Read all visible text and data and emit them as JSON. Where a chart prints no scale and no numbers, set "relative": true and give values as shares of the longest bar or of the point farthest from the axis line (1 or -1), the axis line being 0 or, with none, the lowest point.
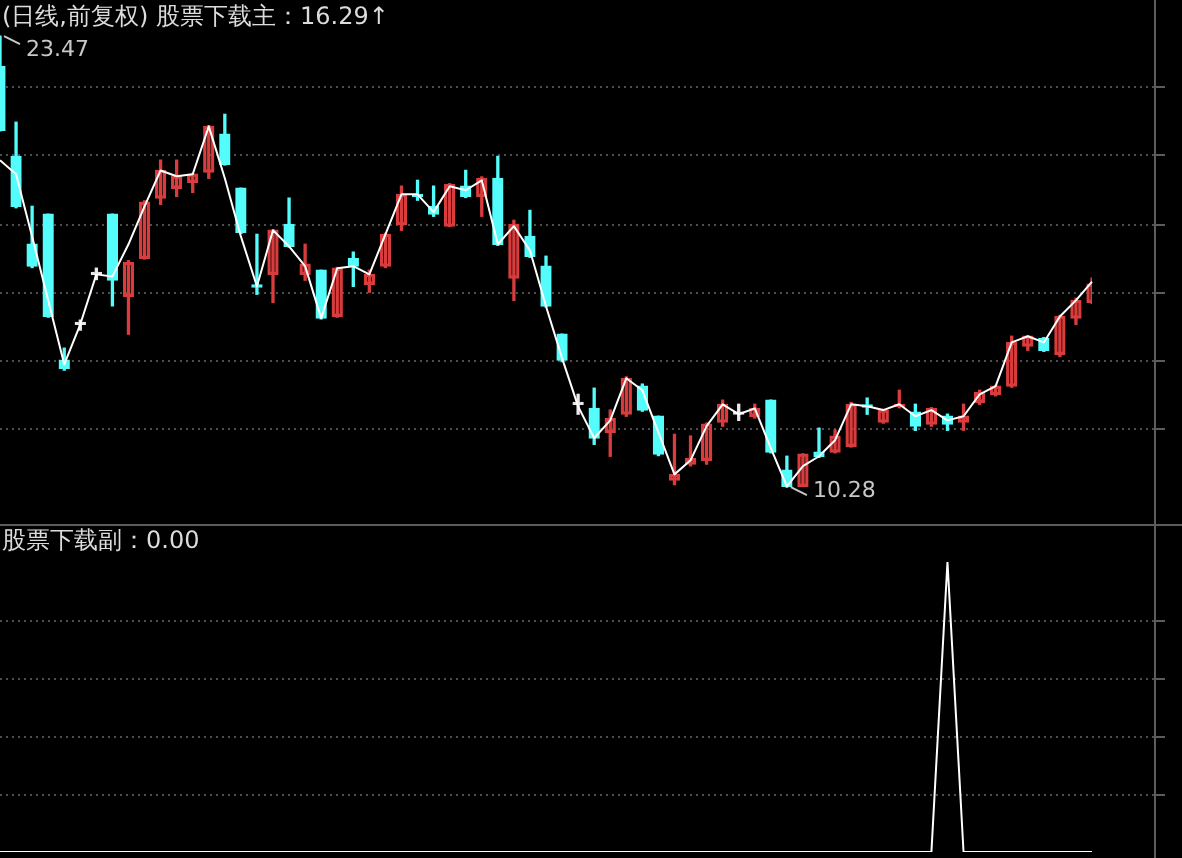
{
  "chart_data": [
    {
      "type": "candlestick",
      "title": "(日线,前复权) 股票下载主：16.29↑",
      "categories": [
        null,
        null,
        null,
        null,
        null,
        null,
        null,
        null,
        null,
        null,
        null,
        null,
        null,
        null,
        null,
        null,
        null,
        null,
        null,
        null,
        null,
        null,
        null,
        null,
        null,
        null,
        null,
        null,
        null,
        null,
        null,
        null,
        null,
        null,
        null,
        null,
        null,
        null,
        null,
        null,
        null,
        null,
        null,
        null,
        null,
        null,
        null,
        null,
        null,
        null,
        null,
        null,
        null,
        null,
        null,
        null,
        null,
        null,
        null,
        null,
        null,
        null,
        null,
        null,
        null,
        null,
        null,
        null,
        null
      ],
      "ohlc": [
        [
          22.58,
          23.47,
          20.7,
          20.71
        ],
        [
          19.95,
          20.95,
          18.45,
          18.49
        ],
        [
          17.38,
          18.49,
          16.7,
          16.74
        ],
        [
          18.26,
          18.26,
          15.25,
          15.27
        ],
        [
          13.99,
          14.34,
          13.7,
          13.75
        ],
        [
          15.04,
          15.16,
          14.87,
          15.04
        ],
        [
          16.5,
          16.68,
          16.35,
          16.5
        ],
        [
          18.26,
          18.26,
          15.58,
          16.33
        ],
        [
          15.86,
          16.9,
          14.75,
          16.85
        ],
        [
          16.97,
          18.65,
          16.95,
          18.61
        ],
        [
          18.73,
          19.84,
          18.55,
          19.54
        ],
        [
          19.02,
          19.84,
          18.78,
          19.37
        ],
        [
          19.19,
          19.45,
          18.9,
          19.43
        ],
        [
          19.49,
          20.85,
          19.31,
          20.83
        ],
        [
          20.6,
          21.18,
          19.7,
          19.72
        ],
        [
          19.02,
          19.02,
          17.7,
          17.73
        ],
        [
          16.17,
          17.67,
          15.92,
          16.13
        ],
        [
          16.5,
          17.8,
          15.68,
          17.79
        ],
        [
          17.96,
          18.73,
          17.3,
          17.32
        ],
        [
          16.5,
          17.38,
          16.33,
          16.8
        ],
        [
          16.62,
          16.62,
          15.2,
          15.22
        ],
        [
          15.27,
          16.7,
          15.25,
          16.68
        ],
        [
          16.97,
          17.15,
          16.15,
          16.74
        ],
        [
          16.21,
          16.62,
          15.98,
          16.5
        ],
        [
          16.74,
          17.7,
          16.7,
          17.67
        ],
        [
          17.96,
          19.08,
          17.79,
          18.84
        ],
        [
          18.84,
          19.25,
          18.67,
          18.78
        ],
        [
          18.49,
          19.08,
          18.2,
          18.26
        ],
        [
          17.91,
          19.15,
          17.9,
          19.13
        ],
        [
          19.08,
          19.54,
          18.75,
          18.78
        ],
        [
          18.78,
          19.35,
          18.2,
          19.31
        ],
        [
          19.31,
          19.95,
          17.35,
          17.38
        ],
        [
          16.39,
          18.08,
          15.74,
          17.96
        ],
        [
          17.61,
          18.37,
          17.0,
          17.03
        ],
        [
          16.74,
          17.03,
          15.55,
          15.57
        ],
        [
          14.75,
          14.75,
          13.95,
          13.99
        ],
        [
          12.7,
          12.99,
          12.41,
          12.7
        ],
        [
          12.58,
          13.17,
          11.53,
          11.71
        ],
        [
          11.88,
          12.53,
          11.18,
          12.29
        ],
        [
          12.41,
          13.5,
          12.35,
          13.46
        ],
        [
          13.23,
          13.29,
          12.5,
          12.53
        ],
        [
          12.35,
          12.35,
          11.2,
          11.24
        ],
        [
          10.48,
          11.82,
          10.35,
          10.65
        ],
        [
          10.95,
          11.77,
          10.9,
          11.12
        ],
        [
          11.06,
          12.15,
          10.95,
          12.12
        ],
        [
          12.18,
          12.82,
          12.06,
          12.7
        ],
        [
          12.41,
          12.7,
          12.23,
          12.41
        ],
        [
          12.35,
          12.7,
          12.3,
          12.58
        ],
        [
          12.82,
          12.82,
          11.28,
          11.3
        ],
        [
          10.77,
          11.18,
          10.28,
          10.3
        ],
        [
          10.3,
          11.25,
          10.3,
          11.24
        ],
        [
          11.3,
          12.0,
          11.15,
          11.18
        ],
        [
          11.3,
          11.94,
          11.28,
          11.77
        ],
        [
          11.47,
          12.75,
          11.45,
          12.7
        ],
        [
          12.66,
          12.88,
          12.41,
          12.62
        ],
        [
          12.18,
          12.55,
          12.15,
          12.53
        ],
        [
          12.64,
          13.11,
          12.6,
          12.7
        ],
        [
          12.47,
          12.7,
          11.94,
          12.06
        ],
        [
          12.12,
          12.6,
          12.06,
          12.58
        ],
        [
          12.35,
          12.41,
          11.94,
          12.12
        ],
        [
          12.18,
          12.7,
          11.94,
          12.35
        ],
        [
          12.76,
          13.11,
          12.7,
          13.05
        ],
        [
          12.99,
          13.25,
          12.95,
          13.23
        ],
        [
          13.23,
          14.69,
          13.2,
          14.51
        ],
        [
          14.4,
          14.7,
          14.28,
          14.69
        ],
        [
          14.63,
          14.65,
          14.25,
          14.28
        ],
        [
          14.16,
          15.3,
          14.1,
          15.27
        ],
        [
          15.22,
          15.8,
          15.04,
          15.74
        ],
        [
          15.68,
          16.39,
          15.65,
          16.21
        ]
      ],
      "colors": [
        "#54fcfc",
        "#54fcfc",
        "#54fcfc",
        "#54fcfc",
        "#54fcfc",
        "#e8e8e8",
        "#e8e8e8",
        "#54fcfc",
        "#d83c3c",
        "#d83c3c",
        "#d83c3c",
        "#d83c3c",
        "#d83c3c",
        "#d83c3c",
        "#54fcfc",
        "#54fcfc",
        "#54fcfc",
        "#d83c3c",
        "#54fcfc",
        "#d83c3c",
        "#54fcfc",
        "#d83c3c",
        "#54fcfc",
        "#d83c3c",
        "#d83c3c",
        "#d83c3c",
        "#54fcfc",
        "#54fcfc",
        "#d83c3c",
        "#54fcfc",
        "#d83c3c",
        "#54fcfc",
        "#d83c3c",
        "#54fcfc",
        "#54fcfc",
        "#54fcfc",
        "#e8e8e8",
        "#54fcfc",
        "#d83c3c",
        "#d83c3c",
        "#54fcfc",
        "#54fcfc",
        "#d83c3c",
        "#d83c3c",
        "#d83c3c",
        "#d83c3c",
        "#e8e8e8",
        "#d83c3c",
        "#54fcfc",
        "#54fcfc",
        "#d83c3c",
        "#54fcfc",
        "#d83c3c",
        "#d83c3c",
        "#54fcfc",
        "#d83c3c",
        "#d83c3c",
        "#54fcfc",
        "#d83c3c",
        "#54fcfc",
        "#d83c3c",
        "#d83c3c",
        "#d83c3c",
        "#d83c3c",
        "#d83c3c",
        "#54fcfc",
        "#d83c3c",
        "#d83c3c",
        "#d83c3c"
      ],
      "series": [
        {
          "type": "line",
          "color": "#ffffff",
          "values": [
            19.84,
            19.43,
            17.61,
            15.74,
            13.87,
            15.04,
            16.5,
            16.44,
            17.38,
            18.49,
            19.54,
            19.37,
            19.43,
            20.83,
            19.31,
            17.61,
            16.15,
            17.79,
            17.32,
            16.74,
            15.22,
            16.68,
            16.74,
            16.5,
            17.67,
            18.84,
            18.84,
            18.32,
            19.08,
            18.96,
            19.25,
            17.38,
            17.91,
            17.2,
            15.57,
            14.05,
            12.64,
            11.71,
            12.23,
            13.46,
            13.11,
            11.88,
            10.65,
            11.06,
            12.06,
            12.7,
            12.41,
            12.58,
            11.42,
            10.3,
            10.89,
            11.18,
            11.65,
            12.7,
            12.64,
            12.53,
            12.7,
            12.35,
            12.53,
            12.23,
            12.35,
            12.99,
            13.23,
            14.51,
            14.69,
            14.51,
            15.27,
            15.74,
            16.29
          ]
        }
      ],
      "annotations": [
        "23.47",
        "10.28"
      ],
      "grid": "y"
    },
    {
      "type": "line",
      "title": "股票下载副：0.00",
      "categories": [
        null,
        null,
        null,
        null,
        null,
        null,
        null,
        null,
        null,
        null,
        null,
        null,
        null,
        null,
        null,
        null,
        null,
        null,
        null,
        null,
        null,
        null,
        null,
        null,
        null,
        null,
        null,
        null,
        null,
        null,
        null,
        null,
        null,
        null,
        null,
        null,
        null,
        null,
        null,
        null,
        null,
        null,
        null,
        null,
        null,
        null,
        null,
        null,
        null,
        null,
        null,
        null,
        null,
        null,
        null,
        null,
        null,
        null,
        null,
        null,
        null,
        null,
        null,
        null,
        null,
        null,
        null,
        null,
        null
      ],
      "values": [
        0,
        0,
        0,
        0,
        0,
        0,
        0,
        0,
        0,
        0,
        0,
        0,
        0,
        0,
        0,
        0,
        0,
        0,
        0,
        0,
        0,
        0,
        0,
        0,
        0,
        0,
        0,
        0,
        0,
        0,
        0,
        0,
        0,
        0,
        0,
        0,
        0,
        0,
        0,
        0,
        0,
        0,
        0,
        0,
        0,
        0,
        0,
        0,
        0,
        0,
        0,
        0,
        0,
        0,
        0,
        0,
        0,
        0,
        0,
        1,
        0,
        0,
        0,
        0,
        0,
        0,
        0,
        0,
        0
      ],
      "color": "#ffffff",
      "relative": true,
      "grid": "y"
    }
  ]
}
